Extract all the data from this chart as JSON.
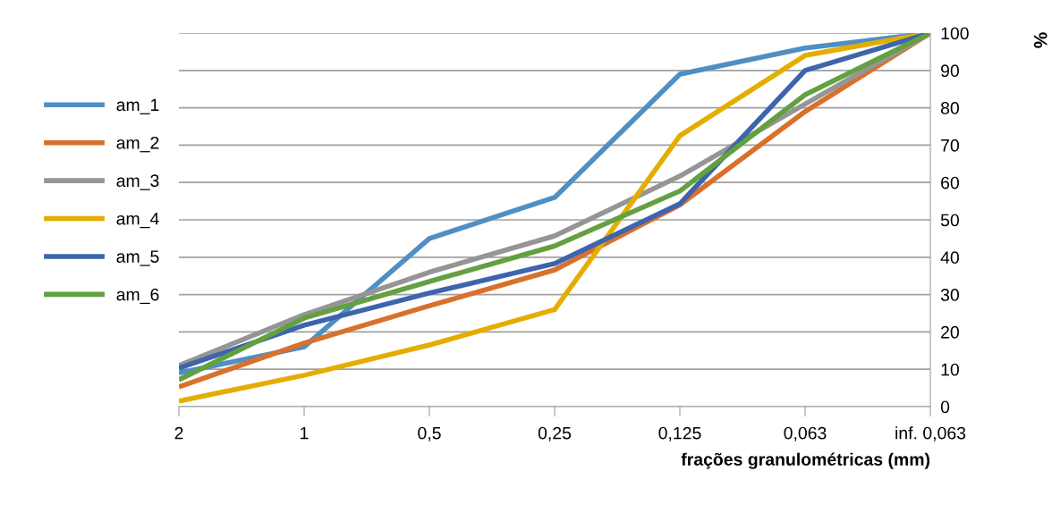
{
  "chart_data": {
    "type": "line",
    "xlabel": "frações granulométricas (mm)",
    "ylabel": "%",
    "categories": [
      "2",
      "1",
      "0,5",
      "0,25",
      "0,125",
      "0,063",
      "inf. 0,063"
    ],
    "series": [
      {
        "name": "am_1",
        "color": "#4f8fc4",
        "values": [
          9,
          16,
          45,
          56,
          89,
          96,
          100
        ]
      },
      {
        "name": "am_2",
        "color": "#d9702c",
        "values": [
          5.3,
          17,
          27,
          36.6,
          54,
          79,
          100
        ]
      },
      {
        "name": "am_3",
        "color": "#959595",
        "values": [
          11,
          24.6,
          36,
          45.7,
          61.7,
          81,
          100
        ]
      },
      {
        "name": "am_4",
        "color": "#e4ad00",
        "values": [
          1.5,
          8.4,
          16.5,
          26,
          72.5,
          94,
          100
        ]
      },
      {
        "name": "am_5",
        "color": "#3d64ad",
        "values": [
          10.3,
          21.8,
          30.4,
          38.3,
          54.3,
          90,
          100
        ]
      },
      {
        "name": "am_6",
        "color": "#63a041",
        "values": [
          7.2,
          23.7,
          33.5,
          43,
          57.7,
          83.5,
          100
        ]
      }
    ],
    "ylim": [
      0,
      100
    ],
    "yticks": [
      0,
      10,
      20,
      30,
      40,
      50,
      60,
      70,
      80,
      90,
      100
    ],
    "grid": "y",
    "legend": "left",
    "marker": "none",
    "line_style": "solid"
  }
}
